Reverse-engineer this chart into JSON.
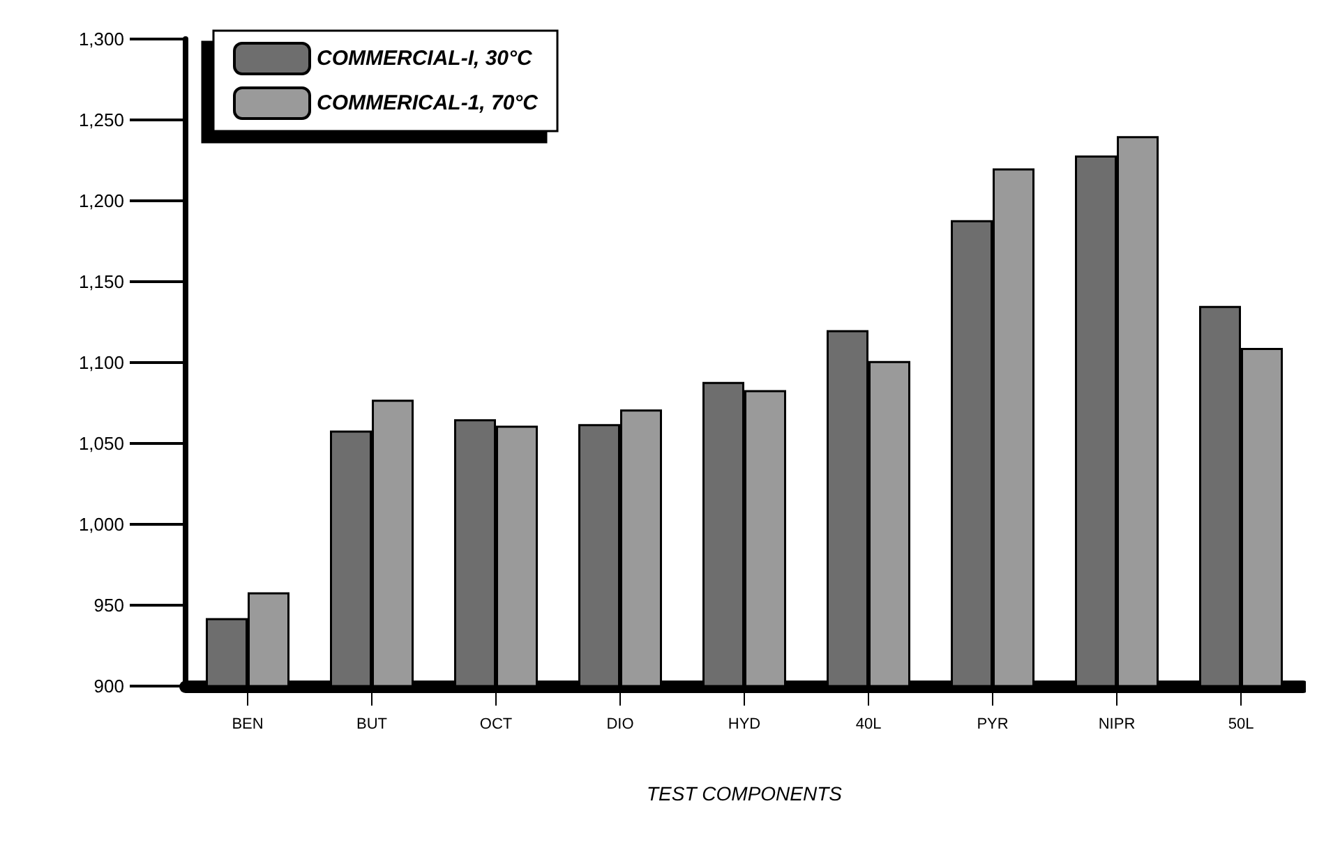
{
  "chart_data": {
    "type": "bar",
    "xlabel": "TEST COMPONENTS",
    "categories": [
      "BEN",
      "BUT",
      "OCT",
      "DIO",
      "HYD",
      "40L",
      "PYR",
      "NIPR",
      "50L"
    ],
    "series": [
      {
        "name": "COMMERCIAL-I, 30°C",
        "color": "#6e6e6e",
        "values": [
          942,
          1058,
          1065,
          1062,
          1088,
          1120,
          1188,
          1228,
          1135
        ]
      },
      {
        "name": "COMMERICAL-1, 70°C",
        "color": "#9a9a9a",
        "values": [
          958,
          1077,
          1061,
          1071,
          1083,
          1101,
          1220,
          1240,
          1109
        ]
      }
    ],
    "ylim": [
      900,
      1300
    ],
    "yticks": [
      {
        "value": 900,
        "label": "900"
      },
      {
        "value": 950,
        "label": "950"
      },
      {
        "value": 1000,
        "label": "1,000"
      },
      {
        "value": 1050,
        "label": "1,050"
      },
      {
        "value": 1100,
        "label": "1,100"
      },
      {
        "value": 1150,
        "label": "1,150"
      },
      {
        "value": 1200,
        "label": "1,200"
      },
      {
        "value": 1250,
        "label": "1,250"
      },
      {
        "value": 1300,
        "label": "1,300"
      }
    ],
    "grid": false,
    "legend": "top left"
  }
}
